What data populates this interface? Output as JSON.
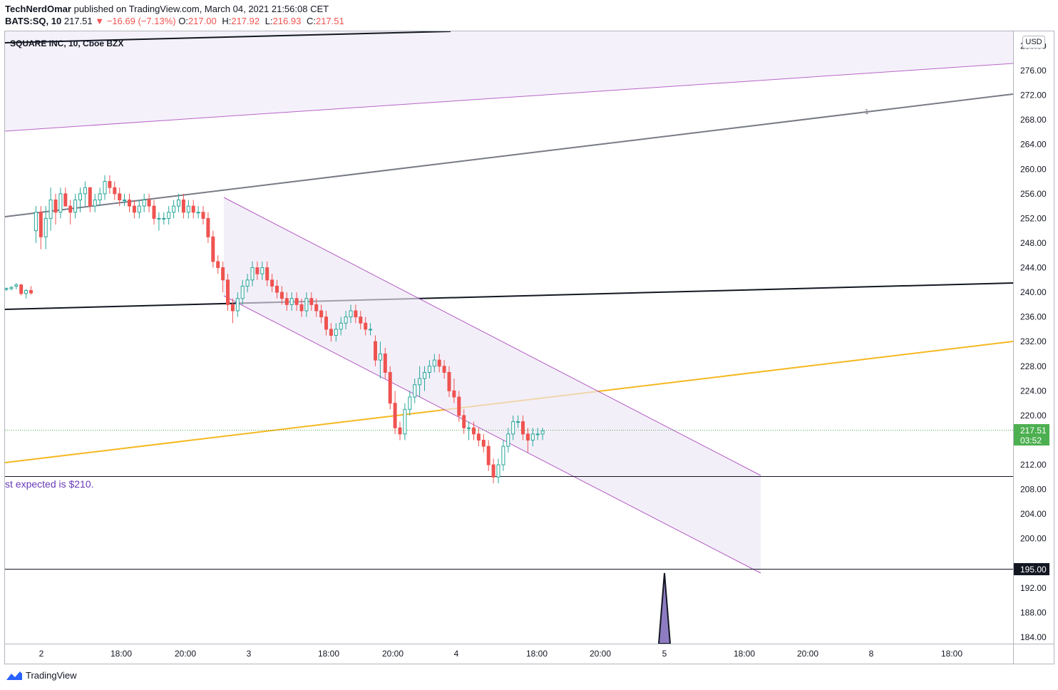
{
  "header": {
    "author": "TechNerdOmar",
    "published": "published on TradingView.com, March 04, 2021 21:56:08 CET",
    "symbol": "BATS:SQ, 10",
    "last": "217.51",
    "change_arrow": "▼",
    "change": "−16.69 (−7.13%)",
    "o_label": "O:",
    "o_val": "217.00",
    "h_label": "H:",
    "h_val": "217.92",
    "l_label": "L:",
    "l_val": "216.93",
    "c_label": "C:",
    "c_val": "217.51"
  },
  "footer": {
    "brand": "TradingView",
    "logo_icon": "tradingview-logo-icon"
  },
  "colors": {
    "up": "#26a69a",
    "down": "#ef5350",
    "channel": "#9c7bc4",
    "orange": "#f5b820",
    "gray": "#787b86",
    "price": "#4caf50"
  },
  "chart_data": {
    "type": "candlestick",
    "title": "SQUARE INC, 10, Cboe BZX",
    "currency": "USD",
    "ylim": [
      182,
      281
    ],
    "y_ticks": [
      184,
      188,
      192,
      196,
      200,
      204,
      208,
      212,
      216,
      220,
      224,
      228,
      232,
      236,
      240,
      244,
      248,
      252,
      256,
      260,
      264,
      268,
      272,
      276,
      280
    ],
    "x_labels": [
      "2",
      "18:00",
      "20:00",
      "3",
      "18:00",
      "20:00",
      "4",
      "18:00",
      "20:00",
      "5",
      "18:00",
      "20:00",
      "8",
      "18:00"
    ],
    "current_price": "217.51",
    "countdown": "03:52",
    "level_label": "195.00",
    "annotation": "st expected is $210.",
    "channel_label": "1",
    "candles": [
      [
        240.5,
        240.8,
        240.2,
        240.6
      ],
      [
        240.6,
        241.0,
        240.3,
        240.8
      ],
      [
        241.0,
        241.5,
        240.5,
        241.2
      ],
      [
        241.2,
        241.4,
        239.5,
        239.8
      ],
      [
        239.8,
        240.5,
        239.0,
        240.3
      ],
      [
        240.3,
        241.0,
        239.6,
        239.9
      ],
      [
        250,
        254,
        248,
        253
      ],
      [
        253,
        254,
        247,
        249
      ],
      [
        249,
        254,
        247,
        252
      ],
      [
        252,
        257,
        250,
        255
      ],
      [
        255,
        256,
        251,
        253
      ],
      [
        253,
        257,
        252,
        256
      ],
      [
        256,
        257,
        254,
        254
      ],
      [
        254,
        255,
        251,
        253
      ],
      [
        253,
        256,
        252,
        255
      ],
      [
        255,
        257,
        253,
        256
      ],
      [
        256,
        258,
        254,
        257
      ],
      [
        257,
        257,
        253,
        254
      ],
      [
        254,
        256,
        253,
        255
      ],
      [
        255,
        257,
        254,
        256
      ],
      [
        256,
        259,
        255,
        258
      ],
      [
        258,
        259,
        256,
        257
      ],
      [
        257,
        258,
        255,
        256
      ],
      [
        256,
        257,
        254,
        255
      ],
      [
        255,
        256,
        254,
        255
      ],
      [
        255,
        256,
        253,
        254
      ],
      [
        254,
        255,
        252,
        253
      ],
      [
        253,
        255,
        252,
        254
      ],
      [
        254,
        256,
        253,
        255
      ],
      [
        255,
        256,
        253,
        254
      ],
      [
        254,
        255,
        251,
        252
      ],
      [
        252,
        253,
        250,
        252
      ],
      [
        252,
        253,
        251,
        252
      ],
      [
        252,
        254,
        251,
        253
      ],
      [
        253,
        255,
        252,
        254
      ],
      [
        254,
        256,
        253,
        255
      ],
      [
        255,
        256,
        252,
        253
      ],
      [
        253,
        255,
        252,
        254
      ],
      [
        254,
        255,
        252,
        253
      ],
      [
        253,
        254,
        252,
        253
      ],
      [
        253,
        254,
        251,
        252
      ],
      [
        252,
        253,
        248,
        249
      ],
      [
        249,
        250,
        244,
        245
      ],
      [
        245,
        246,
        243,
        244
      ],
      [
        244,
        245,
        240,
        242
      ],
      [
        242,
        243,
        237,
        238
      ],
      [
        238,
        239,
        235,
        237
      ],
      [
        237,
        240,
        236,
        239
      ],
      [
        239,
        242,
        238,
        241
      ],
      [
        241,
        243,
        240,
        242
      ],
      [
        242,
        245,
        241,
        244
      ],
      [
        244,
        245,
        242,
        243
      ],
      [
        243,
        245,
        242,
        244
      ],
      [
        244,
        245,
        241,
        242
      ],
      [
        242,
        243,
        240,
        241
      ],
      [
        241,
        242,
        239,
        240
      ],
      [
        240,
        241,
        238,
        239
      ],
      [
        239,
        240,
        237,
        238
      ],
      [
        238,
        240,
        237,
        239
      ],
      [
        239,
        240,
        237,
        238
      ],
      [
        238,
        239,
        236,
        237
      ],
      [
        237,
        240,
        236,
        239
      ],
      [
        239,
        240,
        237,
        238
      ],
      [
        238,
        239,
        236,
        237
      ],
      [
        237,
        238,
        235,
        236
      ],
      [
        236,
        237,
        233,
        234
      ],
      [
        234,
        235,
        232,
        233
      ],
      [
        233,
        235,
        232,
        234
      ],
      [
        234,
        236,
        233,
        235
      ],
      [
        235,
        237,
        234,
        236
      ],
      [
        236,
        238,
        235,
        237
      ],
      [
        237,
        238,
        235,
        236
      ],
      [
        236,
        237,
        234,
        235
      ],
      [
        235,
        236,
        233,
        234
      ],
      [
        234,
        235,
        233,
        234
      ],
      [
        232,
        233,
        228,
        229
      ],
      [
        229,
        232,
        226,
        230
      ],
      [
        230,
        231,
        226,
        227
      ],
      [
        227,
        228,
        221,
        222
      ],
      [
        222,
        224,
        217,
        218
      ],
      [
        218,
        219,
        216,
        217
      ],
      [
        217,
        222,
        216,
        221
      ],
      [
        221,
        224,
        220,
        223
      ],
      [
        223,
        226,
        222,
        225
      ],
      [
        225,
        228,
        223,
        226
      ],
      [
        226,
        228,
        224,
        227
      ],
      [
        227,
        229,
        226,
        228
      ],
      [
        228,
        230,
        227,
        229
      ],
      [
        229,
        230,
        227,
        228
      ],
      [
        228,
        229,
        226,
        227
      ],
      [
        227,
        228,
        223,
        224
      ],
      [
        224,
        226,
        222,
        223
      ],
      [
        223,
        224,
        219,
        220
      ],
      [
        220,
        221,
        217,
        218
      ],
      [
        218,
        219,
        216,
        218
      ],
      [
        218,
        219,
        216,
        217
      ],
      [
        217,
        218,
        215,
        216
      ],
      [
        216,
        217,
        214,
        215
      ],
      [
        215,
        216,
        211,
        212
      ],
      [
        212,
        213,
        209,
        210
      ],
      [
        210,
        213,
        209,
        212
      ],
      [
        212,
        216,
        211,
        215
      ],
      [
        215,
        218,
        214,
        217
      ],
      [
        217,
        220,
        216,
        219
      ],
      [
        219,
        220,
        218,
        219
      ],
      [
        219,
        220,
        216,
        217
      ],
      [
        217,
        218,
        214,
        216
      ],
      [
        216,
        218,
        215,
        217
      ],
      [
        217,
        218,
        216,
        217
      ],
      [
        217,
        218,
        216,
        217.5
      ]
    ]
  }
}
